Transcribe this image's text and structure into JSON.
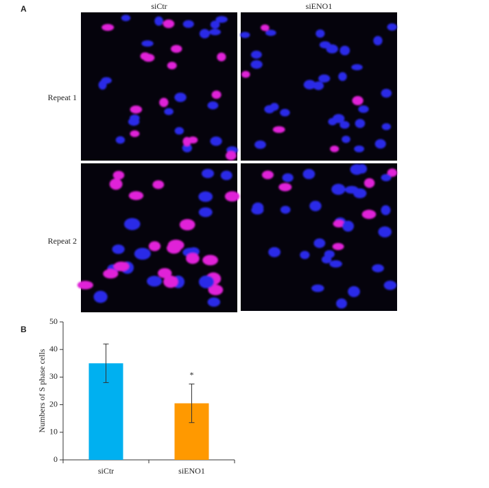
{
  "panels": {
    "a_label": "A",
    "b_label": "B"
  },
  "columns": [
    "siCtr",
    "siENO1"
  ],
  "rows": [
    "Repeat 1",
    "Repeat 2"
  ],
  "chart_data": {
    "type": "bar",
    "ylabel": "Numbers of S phase cells",
    "categories": [
      "siCtr",
      "siENO1"
    ],
    "values": [
      35,
      20.5
    ],
    "errors": [
      7,
      7
    ],
    "colors": [
      "#00b0f0",
      "#ff9900"
    ],
    "annotations": [
      "*"
    ],
    "ylim": [
      0,
      50
    ],
    "yticks": [
      0,
      10,
      20,
      30,
      40,
      50
    ]
  }
}
